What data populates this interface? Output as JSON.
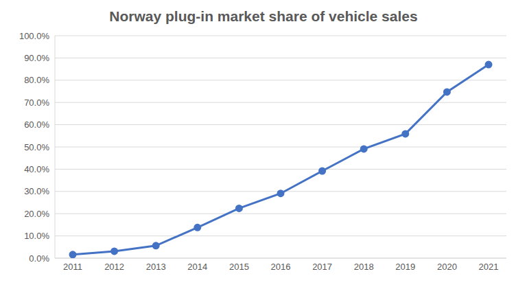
{
  "chart_data": {
    "type": "line",
    "title": "Norway plug-in market share of vehicle sales",
    "categories": [
      "2011",
      "2012",
      "2013",
      "2014",
      "2015",
      "2016",
      "2017",
      "2018",
      "2019",
      "2020",
      "2021"
    ],
    "values": [
      1.6,
      3.1,
      5.6,
      13.8,
      22.4,
      29.1,
      39.2,
      49.1,
      55.9,
      74.7,
      87.0
    ],
    "color": "#4472c4",
    "marker": "circle",
    "ylim": [
      0,
      100
    ],
    "yticks": [
      {
        "value": 0,
        "label": "0.0%"
      },
      {
        "value": 10,
        "label": "10.0%"
      },
      {
        "value": 20,
        "label": "20.0%"
      },
      {
        "value": 30,
        "label": "30.0%"
      },
      {
        "value": 40,
        "label": "40.0%"
      },
      {
        "value": 50,
        "label": "50.0%"
      },
      {
        "value": 60,
        "label": "60.0%"
      },
      {
        "value": 70,
        "label": "70.0%"
      },
      {
        "value": 80,
        "label": "80.0%"
      },
      {
        "value": 90,
        "label": "90.0%"
      },
      {
        "value": 100,
        "label": "100.0%"
      }
    ],
    "grid": true
  }
}
